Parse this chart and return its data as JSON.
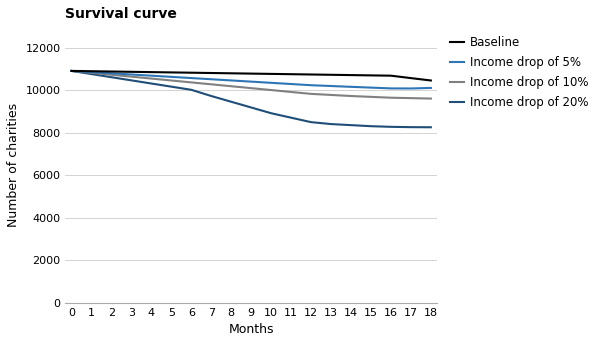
{
  "title": "Survival curve",
  "xlabel": "Months",
  "ylabel": "Number of charities",
  "x": [
    0,
    1,
    2,
    3,
    4,
    5,
    6,
    7,
    8,
    9,
    10,
    11,
    12,
    13,
    14,
    15,
    16,
    17,
    18
  ],
  "baseline": [
    10900,
    10886,
    10872,
    10858,
    10844,
    10830,
    10816,
    10802,
    10788,
    10774,
    10760,
    10746,
    10732,
    10718,
    10704,
    10690,
    10676,
    10562,
    10450
  ],
  "drop5": [
    10900,
    10844,
    10788,
    10732,
    10676,
    10620,
    10564,
    10508,
    10452,
    10396,
    10340,
    10284,
    10228,
    10190,
    10152,
    10115,
    10078,
    10075,
    10100
  ],
  "drop10": [
    10900,
    10810,
    10720,
    10630,
    10540,
    10450,
    10360,
    10270,
    10180,
    10090,
    10000,
    9910,
    9820,
    9770,
    9720,
    9680,
    9640,
    9620,
    9600
  ],
  "drop20": [
    10900,
    10752,
    10604,
    10456,
    10308,
    10160,
    10012,
    9720,
    9450,
    9180,
    8910,
    8700,
    8490,
    8400,
    8350,
    8300,
    8270,
    8255,
    8250
  ],
  "colors": {
    "baseline": "#000000",
    "drop5": "#2e75b6",
    "drop10": "#808080",
    "drop20": "#1f4e79"
  },
  "legend_labels": [
    "Baseline",
    "Income drop of 5%",
    "Income drop of 10%",
    "Income drop of 20%"
  ],
  "ylim": [
    0,
    13000
  ],
  "yticks": [
    0,
    2000,
    4000,
    6000,
    8000,
    10000,
    12000
  ],
  "xticks": [
    0,
    1,
    2,
    3,
    4,
    5,
    6,
    7,
    8,
    9,
    10,
    11,
    12,
    13,
    14,
    15,
    16,
    17,
    18
  ],
  "title_fontsize": 10,
  "axis_label_fontsize": 9,
  "tick_fontsize": 8,
  "legend_fontsize": 8.5,
  "line_width": 1.5,
  "background_color": "#ffffff",
  "grid_color": "#cccccc"
}
